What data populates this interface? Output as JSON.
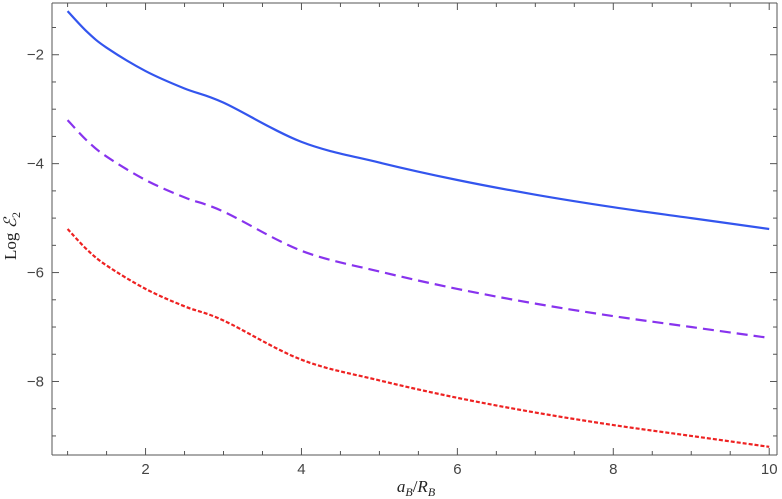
{
  "chart_data": {
    "type": "line",
    "xlabel": "a_B/R_B",
    "ylabel": "Log ℰ2",
    "xlim": [
      0.8,
      10.1
    ],
    "ylim": [
      -9.35,
      -1.05
    ],
    "xticks": [
      2,
      4,
      6,
      8,
      10
    ],
    "yticks": [
      -2,
      -4,
      -6,
      -8
    ],
    "grid": false,
    "series": [
      {
        "style": "solid",
        "color": "#3355ee",
        "x": [
          1,
          1.25,
          1.5,
          2,
          2.5,
          3,
          4,
          5,
          6,
          7,
          8,
          9,
          10
        ],
        "y": [
          -1.2,
          -1.58,
          -1.87,
          -2.3,
          -2.62,
          -2.88,
          -3.6,
          -3.98,
          -4.3,
          -4.57,
          -4.8,
          -5.0,
          -5.2
        ]
      },
      {
        "style": "dashed",
        "color": "#8833ee",
        "x": [
          1,
          1.25,
          1.5,
          2,
          2.5,
          3,
          4,
          5,
          6,
          7,
          8,
          9,
          10
        ],
        "y": [
          -3.2,
          -3.58,
          -3.87,
          -4.3,
          -4.62,
          -4.88,
          -5.6,
          -5.98,
          -6.3,
          -6.57,
          -6.8,
          -7.0,
          -7.2
        ]
      },
      {
        "style": "dotted",
        "color": "#ee2222",
        "x": [
          1,
          1.25,
          1.5,
          2,
          2.5,
          3,
          4,
          5,
          6,
          7,
          8,
          9,
          10
        ],
        "y": [
          -5.2,
          -5.58,
          -5.87,
          -6.3,
          -6.62,
          -6.88,
          -7.6,
          -7.98,
          -8.3,
          -8.57,
          -8.8,
          -9.0,
          -9.2
        ]
      }
    ]
  }
}
